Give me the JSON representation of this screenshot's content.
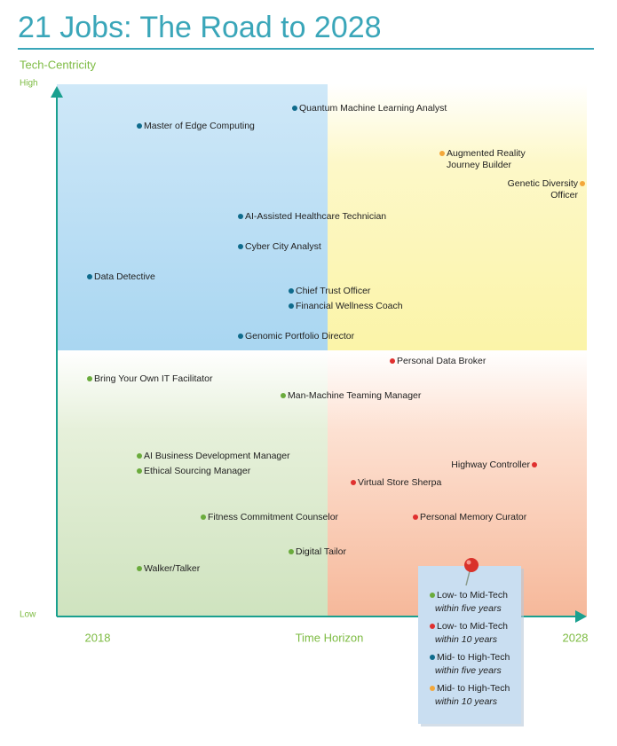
{
  "title": "21 Jobs: The Road to 2028",
  "y_axis": {
    "label": "Tech-Centricity",
    "high": "High",
    "low": "Low"
  },
  "x_axis": {
    "start": "2018",
    "label": "Time Horizon",
    "end": "2028"
  },
  "legend": [
    {
      "title": "Low- to Mid-Tech",
      "note": "within five years",
      "color": "#6aab3c"
    },
    {
      "title": "Low- to Mid-Tech",
      "note": "within 10 years",
      "color": "#e0302f"
    },
    {
      "title": "Mid- to High-Tech",
      "note": "within five years",
      "color": "#0e6b8c"
    },
    {
      "title": "Mid- to High-Tech",
      "note": "within 10 years",
      "color": "#f3a73a"
    }
  ],
  "jobs": [
    {
      "lines": [
        "Quantum Machine Learning Analyst"
      ],
      "group": 2
    },
    {
      "lines": [
        "Master of Edge Computing"
      ],
      "group": 2
    },
    {
      "lines": [
        "Augmented Reality",
        "Journey Builder"
      ],
      "group": 3
    },
    {
      "lines": [
        "Genetic Diversity",
        "Officer"
      ],
      "group": 3
    },
    {
      "lines": [
        "AI-Assisted Healthcare Technician"
      ],
      "group": 2
    },
    {
      "lines": [
        "Cyber City Analyst"
      ],
      "group": 2
    },
    {
      "lines": [
        "Data Detective"
      ],
      "group": 2
    },
    {
      "lines": [
        "Chief Trust Officer"
      ],
      "group": 2
    },
    {
      "lines": [
        "Financial Wellness Coach"
      ],
      "group": 2
    },
    {
      "lines": [
        "Genomic Portfolio Director"
      ],
      "group": 2
    },
    {
      "lines": [
        "Personal Data Broker"
      ],
      "group": 1
    },
    {
      "lines": [
        "Bring Your Own IT Facilitator"
      ],
      "group": 0
    },
    {
      "lines": [
        "Man-Machine Teaming Manager"
      ],
      "group": 0
    },
    {
      "lines": [
        "AI Business Development Manager"
      ],
      "group": 0
    },
    {
      "lines": [
        "Ethical Sourcing Manager"
      ],
      "group": 0
    },
    {
      "lines": [
        "Highway Controller"
      ],
      "group": 1
    },
    {
      "lines": [
        "Virtual Store Sherpa"
      ],
      "group": 1
    },
    {
      "lines": [
        "Fitness Commitment Counselor"
      ],
      "group": 0
    },
    {
      "lines": [
        "Personal Memory Curator"
      ],
      "group": 1
    },
    {
      "lines": [
        "Digital Tailor"
      ],
      "group": 0
    },
    {
      "lines": [
        "Walker/Talker"
      ],
      "group": 0
    }
  ]
}
